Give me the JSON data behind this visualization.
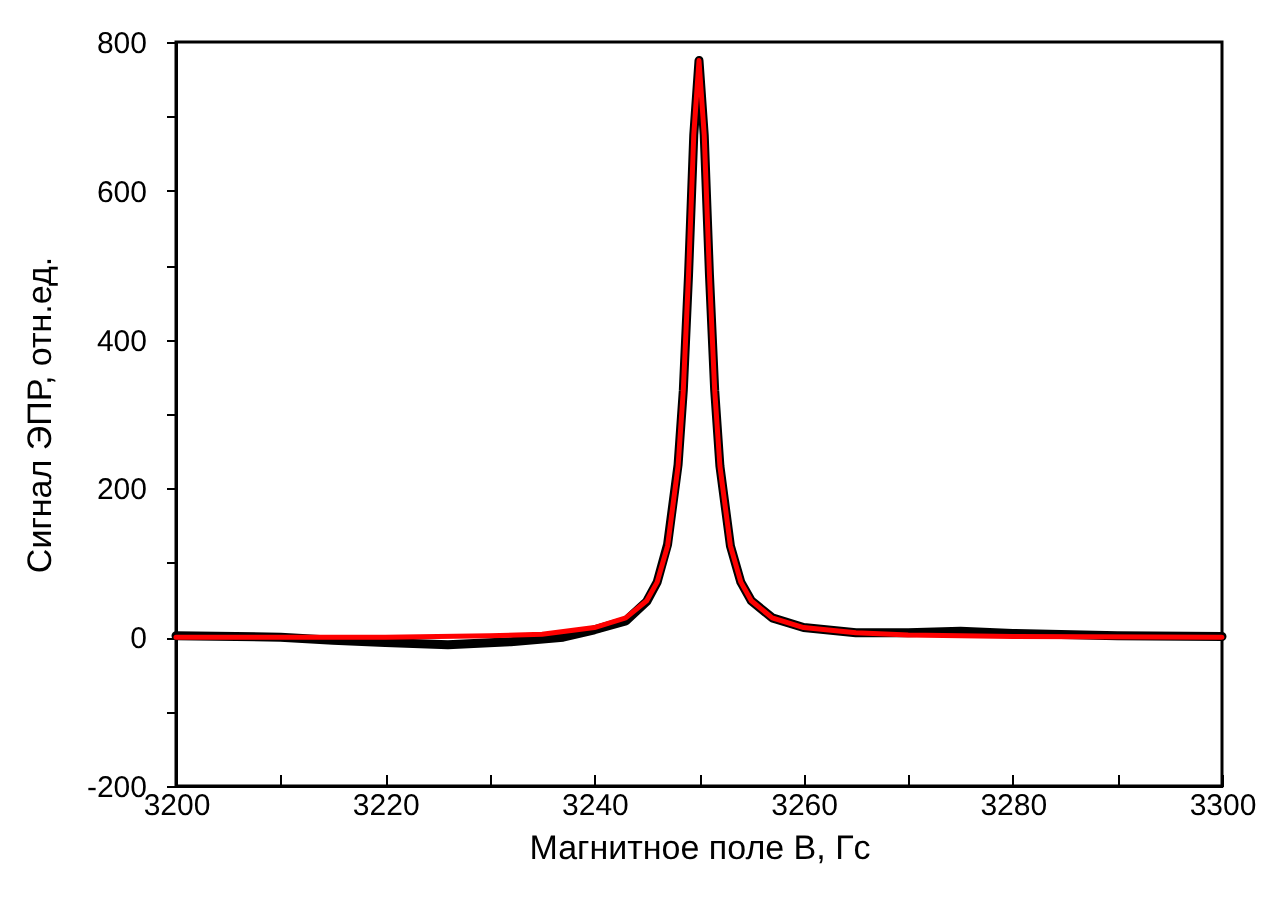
{
  "chart_data": {
    "type": "line",
    "xlabel": "Магнитное поле B, Гс",
    "ylabel": "Сигнал ЭПР, отн.ед.",
    "xlim": [
      3200,
      3300
    ],
    "ylim": [
      -200,
      800
    ],
    "xticks": [
      3200,
      {
        "value": 3210,
        "label": null
      },
      3220,
      {
        "value": 3230,
        "label": null
      },
      3240,
      {
        "value": 3250,
        "label": null
      },
      3260,
      {
        "value": 3270,
        "label": null
      },
      3280,
      {
        "value": 3290,
        "label": null
      },
      3300
    ],
    "yticks": [
      -200,
      {
        "value": -100,
        "label": null
      },
      0,
      {
        "value": 100,
        "label": null
      },
      200,
      {
        "value": 300,
        "label": null
      },
      400,
      {
        "value": 500,
        "label": null
      },
      600,
      {
        "value": 700,
        "label": null
      },
      800
    ],
    "grid": false,
    "legend": false,
    "marker": "none",
    "line_style": "solid",
    "series": [
      {
        "color": "#000000",
        "x": [
          3200,
          3210,
          3215,
          3220,
          3226,
          3232,
          3237,
          3240,
          3243,
          3245,
          3246,
          3247,
          3248,
          3248.5,
          3249,
          3249.5,
          3250,
          3250.5,
          3251,
          3251.5,
          3252,
          3253,
          3254,
          3255,
          3257,
          3260,
          3265,
          3270,
          3275,
          3280,
          3290,
          3300
        ],
        "values": [
          2,
          0,
          -4,
          -7,
          -10,
          -6,
          0,
          10,
          22,
          48,
          74,
          125,
          232,
          332,
          487,
          675,
          775,
          675,
          487,
          332,
          230,
          123,
          74,
          49,
          26,
          13,
          6,
          6,
          8,
          5,
          2,
          1
        ]
      },
      {
        "color": "#ff0000",
        "x": [
          3200,
          3220,
          3230,
          3235,
          3240,
          3243,
          3245,
          3246,
          3247,
          3248,
          3248.5,
          3249,
          3249.5,
          3250,
          3250.5,
          3251,
          3251.5,
          3252,
          3253,
          3254,
          3255,
          3257,
          3260,
          3265,
          3270,
          3280,
          3300
        ],
        "values": [
          0,
          0,
          2,
          4,
          13,
          26,
          49,
          74,
          123,
          230,
          332,
          487,
          675,
          775,
          675,
          487,
          332,
          230,
          123,
          74,
          49,
          26,
          13,
          6,
          3,
          1,
          0
        ]
      }
    ]
  }
}
